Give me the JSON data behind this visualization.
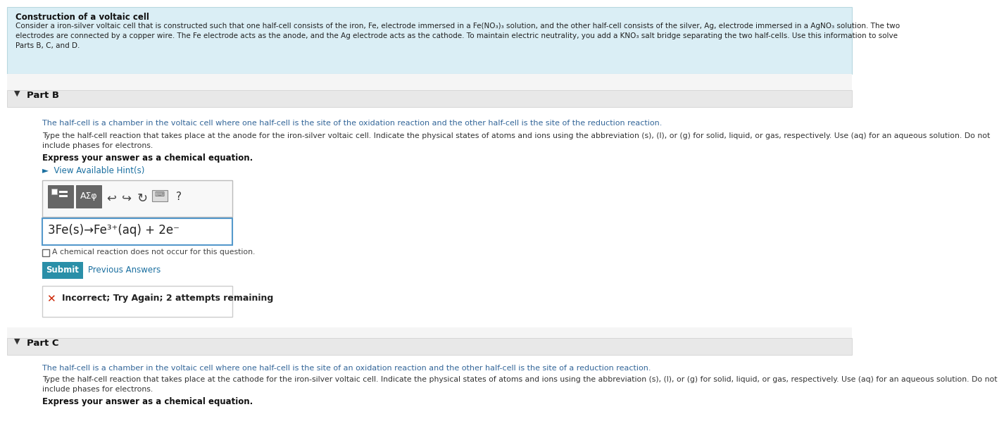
{
  "bg_color": "#ffffff",
  "header_bg": "#daeef5",
  "part_header_bg": "#e8e8e8",
  "white": "#ffffff",
  "title": "Construction of a voltaic cell",
  "intro_line1": "Consider a iron-silver voltaic cell that is constructed such that one half-cell consists of the iron, Fe, electrode immersed in a Fe(NO₃)₃ solution, and the other half-cell consists of the silver, Ag, electrode immersed in a AgNO₃ solution. The two",
  "intro_line2": "electrodes are connected by a copper wire. The Fe electrode acts as the anode, and the Ag electrode acts as the cathode. To maintain electric neutrality, you add a KNO₃ salt bridge separating the two half-cells. Use this information to solve",
  "intro_line3": "Parts B, C, and D.",
  "partb_label": "Part B",
  "partb_desc1": "The half-cell is a chamber in the voltaic cell where one half-cell is the site of the oxidation reaction and the other half-cell is the site of the reduction reaction.",
  "partb_desc2a": "Type the half-cell reaction that takes place at the anode for the iron-silver voltaic cell. Indicate the physical states of atoms and ions using the abbreviation (s), (l), or (g) for solid, liquid, or gas, respectively. Use (aq) for an aqueous solution. Do not",
  "partb_desc2b": "include phases for electrons.",
  "partb_express": "Express your answer as a chemical equation.",
  "partb_hint": "►  View Available Hint(s)",
  "partb_equation": "3Fe(s)→Fe³⁺(aq) + 2e⁻",
  "partb_checkbox_text": "A chemical reaction does not occur for this question.",
  "partb_submit": "Submit",
  "partb_prev": "Previous Answers",
  "partb_incorrect": "Incorrect; Try Again; 2 attempts remaining",
  "partc_label": "Part C",
  "partc_desc1": "The half-cell is a chamber in the voltaic cell where one half-cell is the site of an oxidation reaction and the other half-cell is the site of a reduction reaction.",
  "partc_desc2a": "Type the half-cell reaction that takes place at the cathode for the iron-silver voltaic cell. Indicate the physical states of atoms and ions using the abbreviation (s), (l), or (g) for solid, liquid, or gas, respectively. Use (aq) for an aqueous solution. Do not",
  "partc_desc2b": "include phases for electrons.",
  "partc_express": "Express your answer as a chemical equation.",
  "teal_btn": "#2a8fa8",
  "teal_dark": "#1e7a8e",
  "hint_color": "#1a6fa0",
  "body_text": "#333333",
  "blue_text": "#336699",
  "red_x": "#cc2200",
  "gray_icon": "#777777",
  "border_gray": "#cccccc",
  "toolbar_gray": "#eeeeee",
  "btn_dark_gray": "#666666"
}
